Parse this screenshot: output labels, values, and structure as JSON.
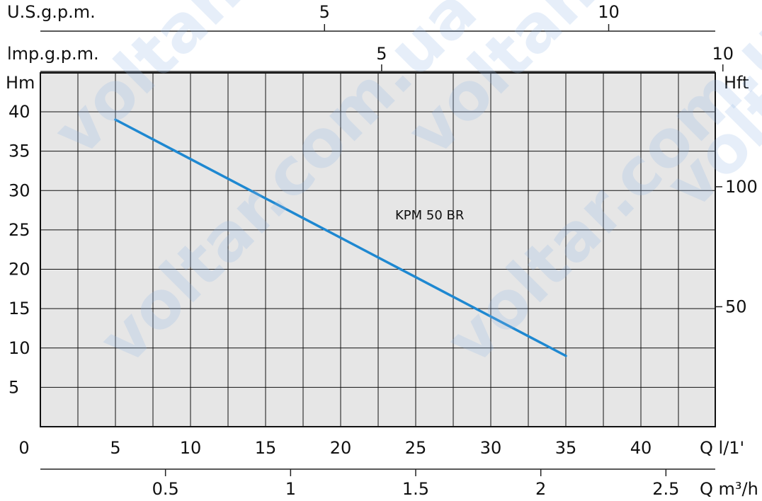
{
  "chart_data": {
    "type": "line",
    "title": "",
    "series": [
      {
        "name": "KPM 50 BR",
        "x": [
          5,
          35
        ],
        "y": [
          39,
          9
        ]
      }
    ],
    "x_axis": {
      "label": "Q l/1'",
      "min": 0,
      "max": 40,
      "ticks": [
        0,
        5,
        10,
        15,
        20,
        25,
        30,
        35,
        40
      ]
    },
    "y_axis_left": {
      "label": "Hm",
      "min": 0,
      "max": 40,
      "ticks": [
        5,
        10,
        15,
        20,
        25,
        30,
        35,
        40
      ]
    },
    "y_axis_right": {
      "label": "Hft",
      "ticks": [
        50,
        100
      ]
    },
    "secondary_top_axis_1": {
      "label": "U.S.g.p.m.",
      "ticks": [
        5,
        10
      ]
    },
    "secondary_top_axis_2": {
      "label": "lmp.g.p.m.",
      "ticks": [
        5,
        10
      ]
    },
    "secondary_bottom_axis": {
      "label": "Q m³/h",
      "ticks": [
        0.5,
        1,
        1.5,
        2,
        2.5
      ]
    },
    "grid": true,
    "colors": {
      "curve": "#1e88d1",
      "grid": "#111111",
      "background": "#e6e6e6"
    },
    "watermark_text": "voltar.com.ua"
  }
}
